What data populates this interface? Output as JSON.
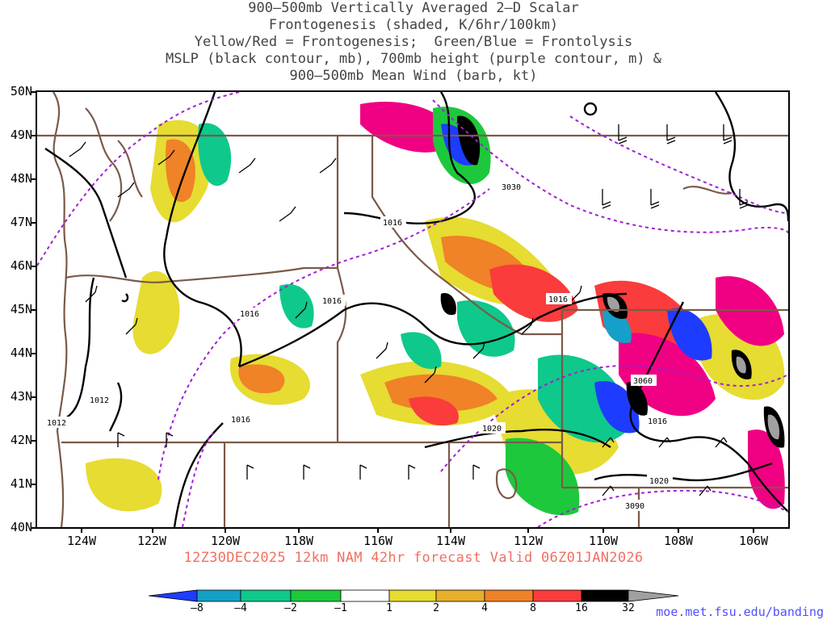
{
  "title": {
    "line1": "900–500mb Vertically Averaged 2–D Scalar",
    "line2": "Frontogenesis (shaded, K/6hr/100km)",
    "line3": "Yellow/Red = Frontogenesis;  Green/Blue = Frontolysis",
    "line4": "MSLP (black contour, mb), 700mb height (purple contour, m) &",
    "line5": "900–500mb Mean Wind (barb, kt)"
  },
  "latitude_labels": [
    "50N",
    "49N",
    "48N",
    "47N",
    "46N",
    "45N",
    "44N",
    "43N",
    "42N",
    "41N",
    "40N"
  ],
  "longitude_labels": [
    "124W",
    "122W",
    "120W",
    "118W",
    "116W",
    "114W",
    "112W",
    "110W",
    "108W",
    "106W"
  ],
  "forecast_info": "12Z30DEC2025 12km NAM 42hr forecast Valid 06Z01JAN2026",
  "colorbar": {
    "labels": [
      "–8",
      "–4",
      "–2",
      "–1",
      "1",
      "2",
      "4",
      "8",
      "16",
      "32"
    ],
    "colors": [
      "#1e3cff",
      "#14a0c8",
      "#0fc88c",
      "#1ec83c",
      "#00dc00",
      "#ffffff",
      "#e6dc32",
      "#e6af2d",
      "#f08228",
      "#fa3c3c",
      "#f00082",
      "#000000",
      "#a0a0a0"
    ]
  },
  "mslp_labels": [
    "1016",
    "1016",
    "1016",
    "1016",
    "1016",
    "1016",
    "1012",
    "1012",
    "1020",
    "1020"
  ],
  "height_labels": [
    "3030",
    "3060",
    "3090"
  ],
  "site_url": "moe.met.fsu.edu/banding",
  "colors": {
    "mslp_contour": "#000000",
    "height_contour": "#a020d0",
    "borders": "#7a5a48",
    "forecast_text": "#f07060",
    "url_text": "#5050ff"
  }
}
